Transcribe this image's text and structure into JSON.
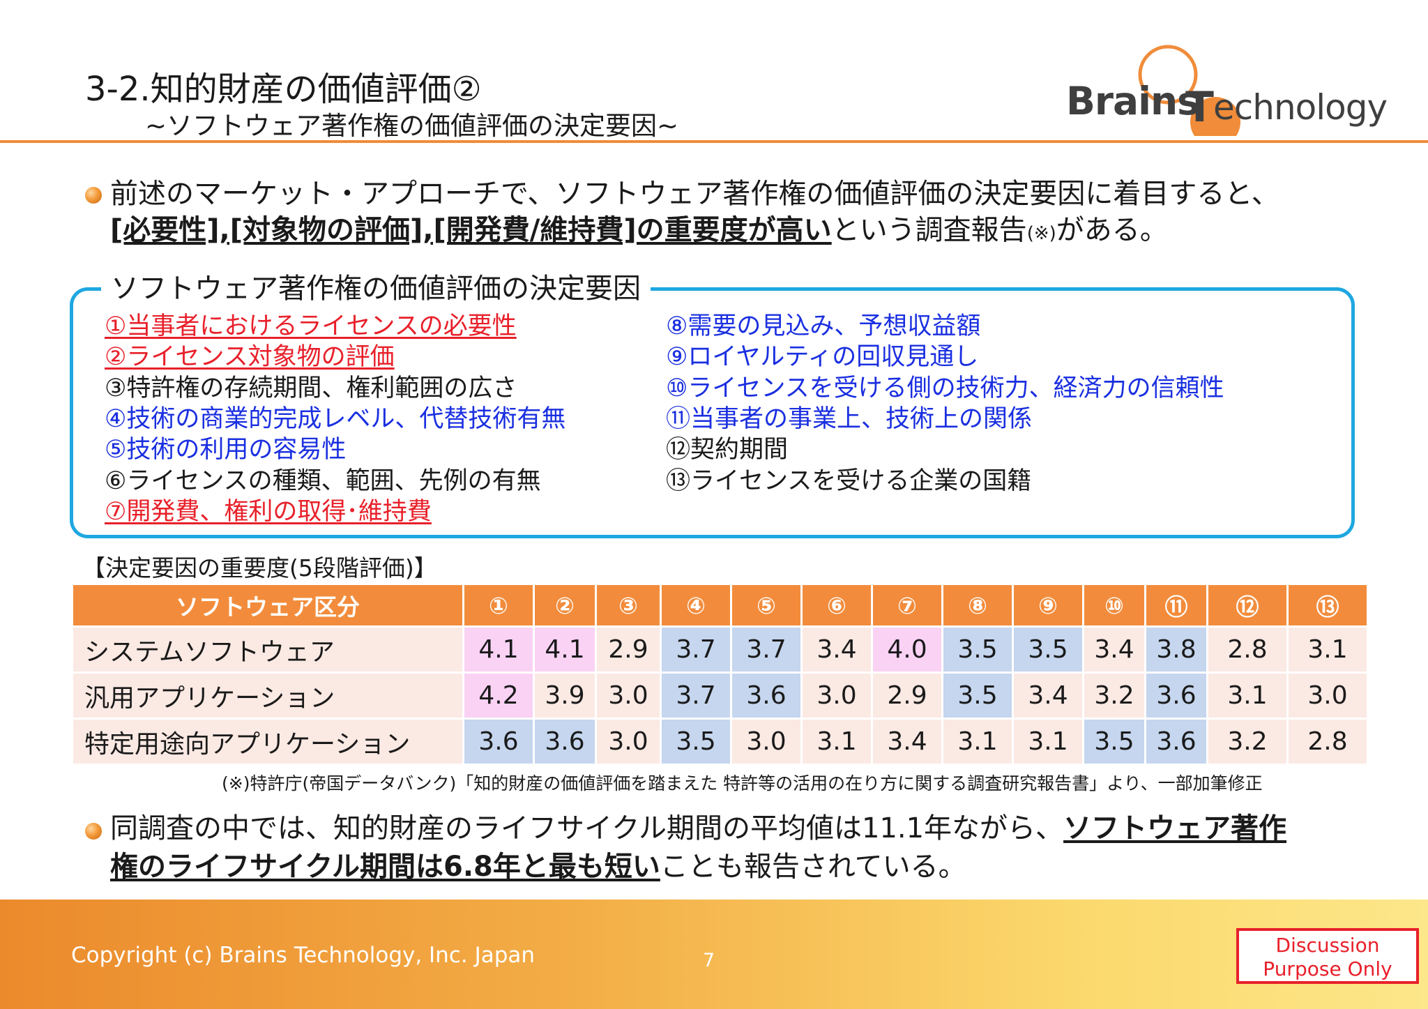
{
  "header": {
    "title": "3-2.知的財産の価値評価②",
    "subtitle": "~ソフトウェア著作権の価値評価の決定要因~"
  },
  "logo": {
    "brains": "Brains",
    "t": "T",
    "technology": "echnology"
  },
  "colors": {
    "accent_orange": "#f08c3a",
    "box_border": "#1ea7e0",
    "highlight_red": "#e8202a",
    "highlight_blue": "#1a2fe0",
    "cell_pink": "#f9d2f4",
    "cell_blue": "#c5d6ee",
    "cell_default": "#fbe9e3"
  },
  "bullet1": {
    "line1": "前述のマーケット・アプローチで、ソフトウェア著作権の価値評価の決定要因に着目すると、",
    "line2_bold": "[必要性],[対象物の評価],[開発費/維持費]の重要度が高い",
    "line2_rest": "という調査報告",
    "line2_note": "(※)",
    "line2_end": "がある。"
  },
  "factor_box": {
    "title": "ソフトウェア著作権の価値評価の決定要因",
    "left": [
      {
        "text": "①当事者におけるライセンスの必要性",
        "style": "red"
      },
      {
        "text": "②ライセンス対象物の評価",
        "style": "red"
      },
      {
        "text": "③特許権の存続期間、権利範囲の広さ",
        "style": "black"
      },
      {
        "text": "④技術の商業的完成レベル、代替技術有無",
        "style": "blue"
      },
      {
        "text": "⑤技術の利用の容易性",
        "style": "blue"
      },
      {
        "text": "⑥ライセンスの種類、範囲、先例の有無",
        "style": "black"
      },
      {
        "text": "⑦開発費、権利の取得･維持費",
        "style": "red"
      }
    ],
    "right": [
      {
        "text": "⑧需要の見込み、予想収益額",
        "style": "blue"
      },
      {
        "text": "⑨ロイヤルティの回収見通し",
        "style": "blue"
      },
      {
        "text": "⑩ライセンスを受ける側の技術力、経済力の信頼性",
        "style": "blue"
      },
      {
        "text": "⑪当事者の事業上、技術上の関係",
        "style": "blue"
      },
      {
        "text": "⑫契約期間",
        "style": "black"
      },
      {
        "text": "⑬ライセンスを受ける企業の国籍",
        "style": "black"
      }
    ]
  },
  "table": {
    "caption": "【決定要因の重要度(5段階評価)】",
    "header_label": "ソフトウェア区分",
    "columns": [
      "①",
      "②",
      "③",
      "④",
      "⑤",
      "⑥",
      "⑦",
      "⑧",
      "⑨",
      "⑩",
      "⑪",
      "⑫",
      "⑬"
    ],
    "rows": [
      {
        "label": "システムソフトウェア",
        "values": [
          "4.1",
          "4.1",
          "2.9",
          "3.7",
          "3.7",
          "3.4",
          "4.0",
          "3.5",
          "3.5",
          "3.4",
          "3.8",
          "2.8",
          "3.1"
        ],
        "highlight": [
          "pink",
          "pink",
          "",
          "blue",
          "blue",
          "",
          "pink",
          "blue",
          "blue",
          "",
          "blue",
          "",
          ""
        ]
      },
      {
        "label": "汎用アプリケーション",
        "values": [
          "4.2",
          "3.9",
          "3.0",
          "3.7",
          "3.6",
          "3.0",
          "2.9",
          "3.5",
          "3.4",
          "3.2",
          "3.6",
          "3.1",
          "3.0"
        ],
        "highlight": [
          "pink",
          "",
          "",
          "blue",
          "blue",
          "",
          "",
          "blue",
          "",
          "",
          "blue",
          "",
          ""
        ]
      },
      {
        "label": "特定用途向アプリケーション",
        "values": [
          "3.6",
          "3.6",
          "3.0",
          "3.5",
          "3.0",
          "3.1",
          "3.4",
          "3.1",
          "3.1",
          "3.5",
          "3.6",
          "3.2",
          "2.8"
        ],
        "highlight": [
          "blue",
          "blue",
          "",
          "blue",
          "",
          "",
          "",
          "",
          "",
          "blue",
          "blue",
          "",
          ""
        ]
      }
    ],
    "note": "(※)特許庁(帝国データバンク)「知的財産の価値評価を踏まえた 特許等の活用の在り方に関する調査研究報告書」より、一部加筆修正"
  },
  "bullet2": {
    "line1_text": "同調査の中では、知的財産のライフサイクル期間の平均値は11.1年ながら、",
    "line1_bold": "ソフトウェア著作",
    "line2_bold": "権のライフサイクル期間は6.8年と最も短い",
    "line2_rest": "ことも報告されている。"
  },
  "footer": {
    "copyright": "Copyright (c) Brains Technology, Inc. Japan",
    "page_number": "7",
    "discussion_line1": "Discussion",
    "discussion_line2": "Purpose Only"
  }
}
